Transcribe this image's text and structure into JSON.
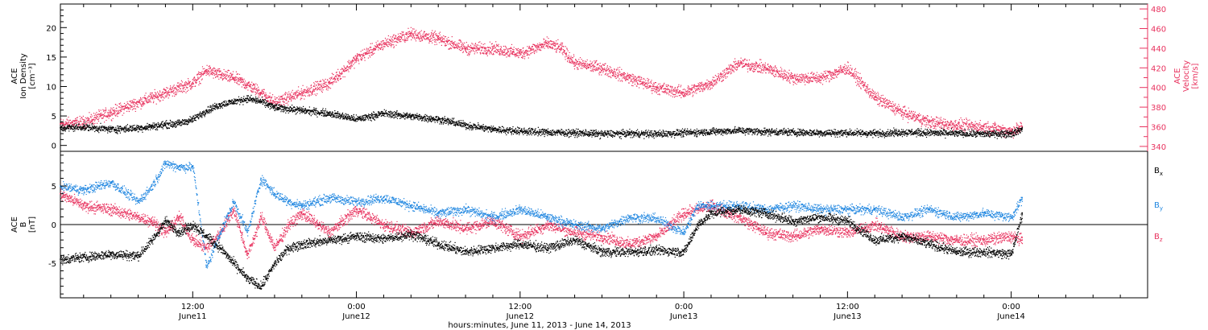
{
  "xaxis_title": "hours:minutes, June 11, 2013 - June 14, 2013",
  "time_ticks": [
    {
      "hour": 12,
      "label": "12:00",
      "sublabel": "June11"
    },
    {
      "hour": 24,
      "label": "0:00",
      "sublabel": "June12"
    },
    {
      "hour": 36,
      "label": "12:00",
      "sublabel": "June12"
    },
    {
      "hour": 48,
      "label": "0:00",
      "sublabel": "June13"
    },
    {
      "hour": 60,
      "label": "12:00",
      "sublabel": "June13"
    },
    {
      "hour": 72,
      "label": "0:00",
      "sublabel": "June14"
    }
  ],
  "colors": {
    "black": "#000000",
    "pink": "#e8335f",
    "blue": "#1f86e0"
  },
  "top_panel": {
    "left_label": [
      "ACE",
      "Ion Density",
      "[cm⁻³]"
    ],
    "right_label": [
      "ACE",
      "Velocity",
      "[km/s]"
    ],
    "left_ticks": [
      "0",
      "5",
      "10",
      "15",
      "20"
    ],
    "right_ticks": [
      "340",
      "360",
      "380",
      "400",
      "420",
      "440",
      "460",
      "480"
    ]
  },
  "bottom_panel": {
    "left_label": [
      "ACE",
      "B",
      "[nT]"
    ],
    "left_ticks": [
      "-5",
      "0",
      "5"
    ],
    "legend": [
      {
        "label": "Bx",
        "color": "#000000"
      },
      {
        "label": "By",
        "color": "#1f86e0"
      },
      {
        "label": "Bz",
        "color": "#e8335f"
      }
    ]
  },
  "chart_data": [
    {
      "type": "scatter",
      "title": "",
      "xlabel": "hours:minutes, June 11, 2013 - June 14, 2013",
      "x_unit": "hours since 2013-06-11 00:00 UT",
      "xlim": [
        2.3,
        82.0
      ],
      "series": [
        {
          "name": "ACE Ion Density [cm⁻³]",
          "axis": "left",
          "ylim": [
            -1,
            24
          ],
          "color": "#000000",
          "x": [
            2.3,
            4,
            6,
            8,
            9,
            10,
            11,
            12,
            13,
            14,
            15,
            16,
            17,
            18,
            20,
            22,
            24,
            26,
            28,
            30,
            32,
            34,
            36,
            38,
            40,
            42,
            44,
            46,
            48,
            50,
            52,
            54,
            56,
            58,
            60,
            62,
            64,
            66,
            68,
            70,
            72,
            72.8
          ],
          "y": [
            3.0,
            3.2,
            2.8,
            3.0,
            3.3,
            3.6,
            3.8,
            4.5,
            6.0,
            7.0,
            7.5,
            8.0,
            7.5,
            6.5,
            6.0,
            5.5,
            4.5,
            5.5,
            5.0,
            4.5,
            3.5,
            2.8,
            2.5,
            2.3,
            2.2,
            2.0,
            2.1,
            2.0,
            2.2,
            2.4,
            2.6,
            2.4,
            2.3,
            2.2,
            2.2,
            2.1,
            2.3,
            2.2,
            2.1,
            2.0,
            2.1,
            2.8
          ]
        },
        {
          "name": "ACE Velocity [km/s]",
          "axis": "right",
          "ylim": [
            335,
            485
          ],
          "color": "#e8335f",
          "x": [
            2.3,
            4,
            6,
            8,
            10,
            12,
            13,
            14,
            15,
            16,
            17,
            18,
            20,
            22,
            24,
            26,
            28,
            30,
            32,
            34,
            36,
            38,
            39,
            40,
            42,
            44,
            46,
            48,
            50,
            52,
            54,
            56,
            58,
            60,
            62,
            64,
            66,
            68,
            70,
            72,
            72.8
          ],
          "y": [
            363,
            365,
            375,
            385,
            395,
            405,
            418,
            413,
            410,
            403,
            395,
            385,
            395,
            405,
            430,
            445,
            455,
            450,
            440,
            440,
            435,
            445,
            440,
            425,
            420,
            410,
            400,
            395,
            405,
            425,
            420,
            410,
            410,
            420,
            390,
            375,
            365,
            362,
            360,
            356,
            360
          ]
        }
      ]
    },
    {
      "type": "scatter",
      "title": "",
      "xlabel": "hours:minutes, June 11, 2013 - June 14, 2013",
      "x_unit": "hours since 2013-06-11 00:00 UT",
      "xlim": [
        2.3,
        82.0
      ],
      "ylabel": "ACE B [nT]",
      "ylim": [
        -9.5,
        9.5
      ],
      "series": [
        {
          "name": "Bx",
          "color": "#000000",
          "x": [
            2.3,
            4,
            6,
            8,
            9,
            10,
            11,
            12,
            13,
            14,
            15,
            16,
            17,
            18,
            19,
            20,
            22,
            24,
            26,
            28,
            30,
            32,
            34,
            36,
            38,
            40,
            42,
            44,
            46,
            48,
            49,
            50,
            52,
            54,
            56,
            58,
            60,
            62,
            64,
            66,
            68,
            70,
            72,
            72.8
          ],
          "y": [
            -4.5,
            -4.2,
            -3.8,
            -4.0,
            -2.0,
            0.5,
            -1.0,
            0.0,
            -1.5,
            -3.0,
            -5.0,
            -7.0,
            -8.0,
            -5.0,
            -3.0,
            -2.5,
            -2.0,
            -1.5,
            -1.8,
            -1.2,
            -2.5,
            -3.5,
            -3.0,
            -2.5,
            -3.0,
            -2.0,
            -3.5,
            -3.5,
            -3.3,
            -3.5,
            0.0,
            1.5,
            2.0,
            1.5,
            0.5,
            1.0,
            0.5,
            -2.0,
            -1.5,
            -2.5,
            -3.5,
            -3.5,
            -3.8,
            1.5
          ]
        },
        {
          "name": "By",
          "color": "#1f86e0",
          "x": [
            2.3,
            4,
            6,
            8,
            9,
            10,
            11,
            12,
            13,
            14,
            15,
            16,
            17,
            18,
            19,
            20,
            22,
            24,
            26,
            28,
            30,
            32,
            34,
            36,
            38,
            40,
            42,
            44,
            46,
            48,
            49,
            50,
            52,
            54,
            56,
            58,
            60,
            62,
            64,
            66,
            68,
            70,
            72,
            72.8
          ],
          "y": [
            5.0,
            4.5,
            5.5,
            3.0,
            5.0,
            8.0,
            7.5,
            7.5,
            -5.5,
            -1.0,
            3.0,
            -1.0,
            6.0,
            4.0,
            3.0,
            2.5,
            3.5,
            3.0,
            3.5,
            2.5,
            1.5,
            2.0,
            1.0,
            2.0,
            1.0,
            0.0,
            -0.5,
            1.0,
            0.8,
            -1.0,
            2.5,
            2.5,
            2.5,
            2.0,
            2.5,
            2.0,
            2.0,
            2.0,
            1.0,
            2.0,
            1.0,
            1.5,
            1.0,
            3.5
          ]
        },
        {
          "name": "Bz",
          "color": "#e8335f",
          "x": [
            2.3,
            4,
            6,
            8,
            9,
            10,
            11,
            12,
            13,
            14,
            15,
            16,
            17,
            18,
            19,
            20,
            22,
            24,
            26,
            28,
            30,
            32,
            34,
            36,
            38,
            40,
            42,
            44,
            46,
            48,
            49,
            50,
            52,
            54,
            56,
            58,
            60,
            62,
            64,
            66,
            68,
            70,
            72,
            72.8
          ],
          "y": [
            4.0,
            2.5,
            2.0,
            1.0,
            0.5,
            -1.0,
            1.0,
            -2.0,
            -3.0,
            -1.0,
            2.0,
            -4.0,
            1.0,
            -3.0,
            0.0,
            1.5,
            -1.0,
            2.0,
            0.0,
            -1.0,
            0.5,
            -0.5,
            0.5,
            -1.5,
            0.0,
            -1.0,
            -1.5,
            -2.5,
            -1.5,
            1.5,
            2.0,
            2.5,
            1.0,
            -1.0,
            -1.5,
            -0.5,
            -1.0,
            0.0,
            -1.5,
            -1.5,
            -2.0,
            -2.0,
            -1.5,
            -2.0
          ]
        }
      ]
    }
  ]
}
